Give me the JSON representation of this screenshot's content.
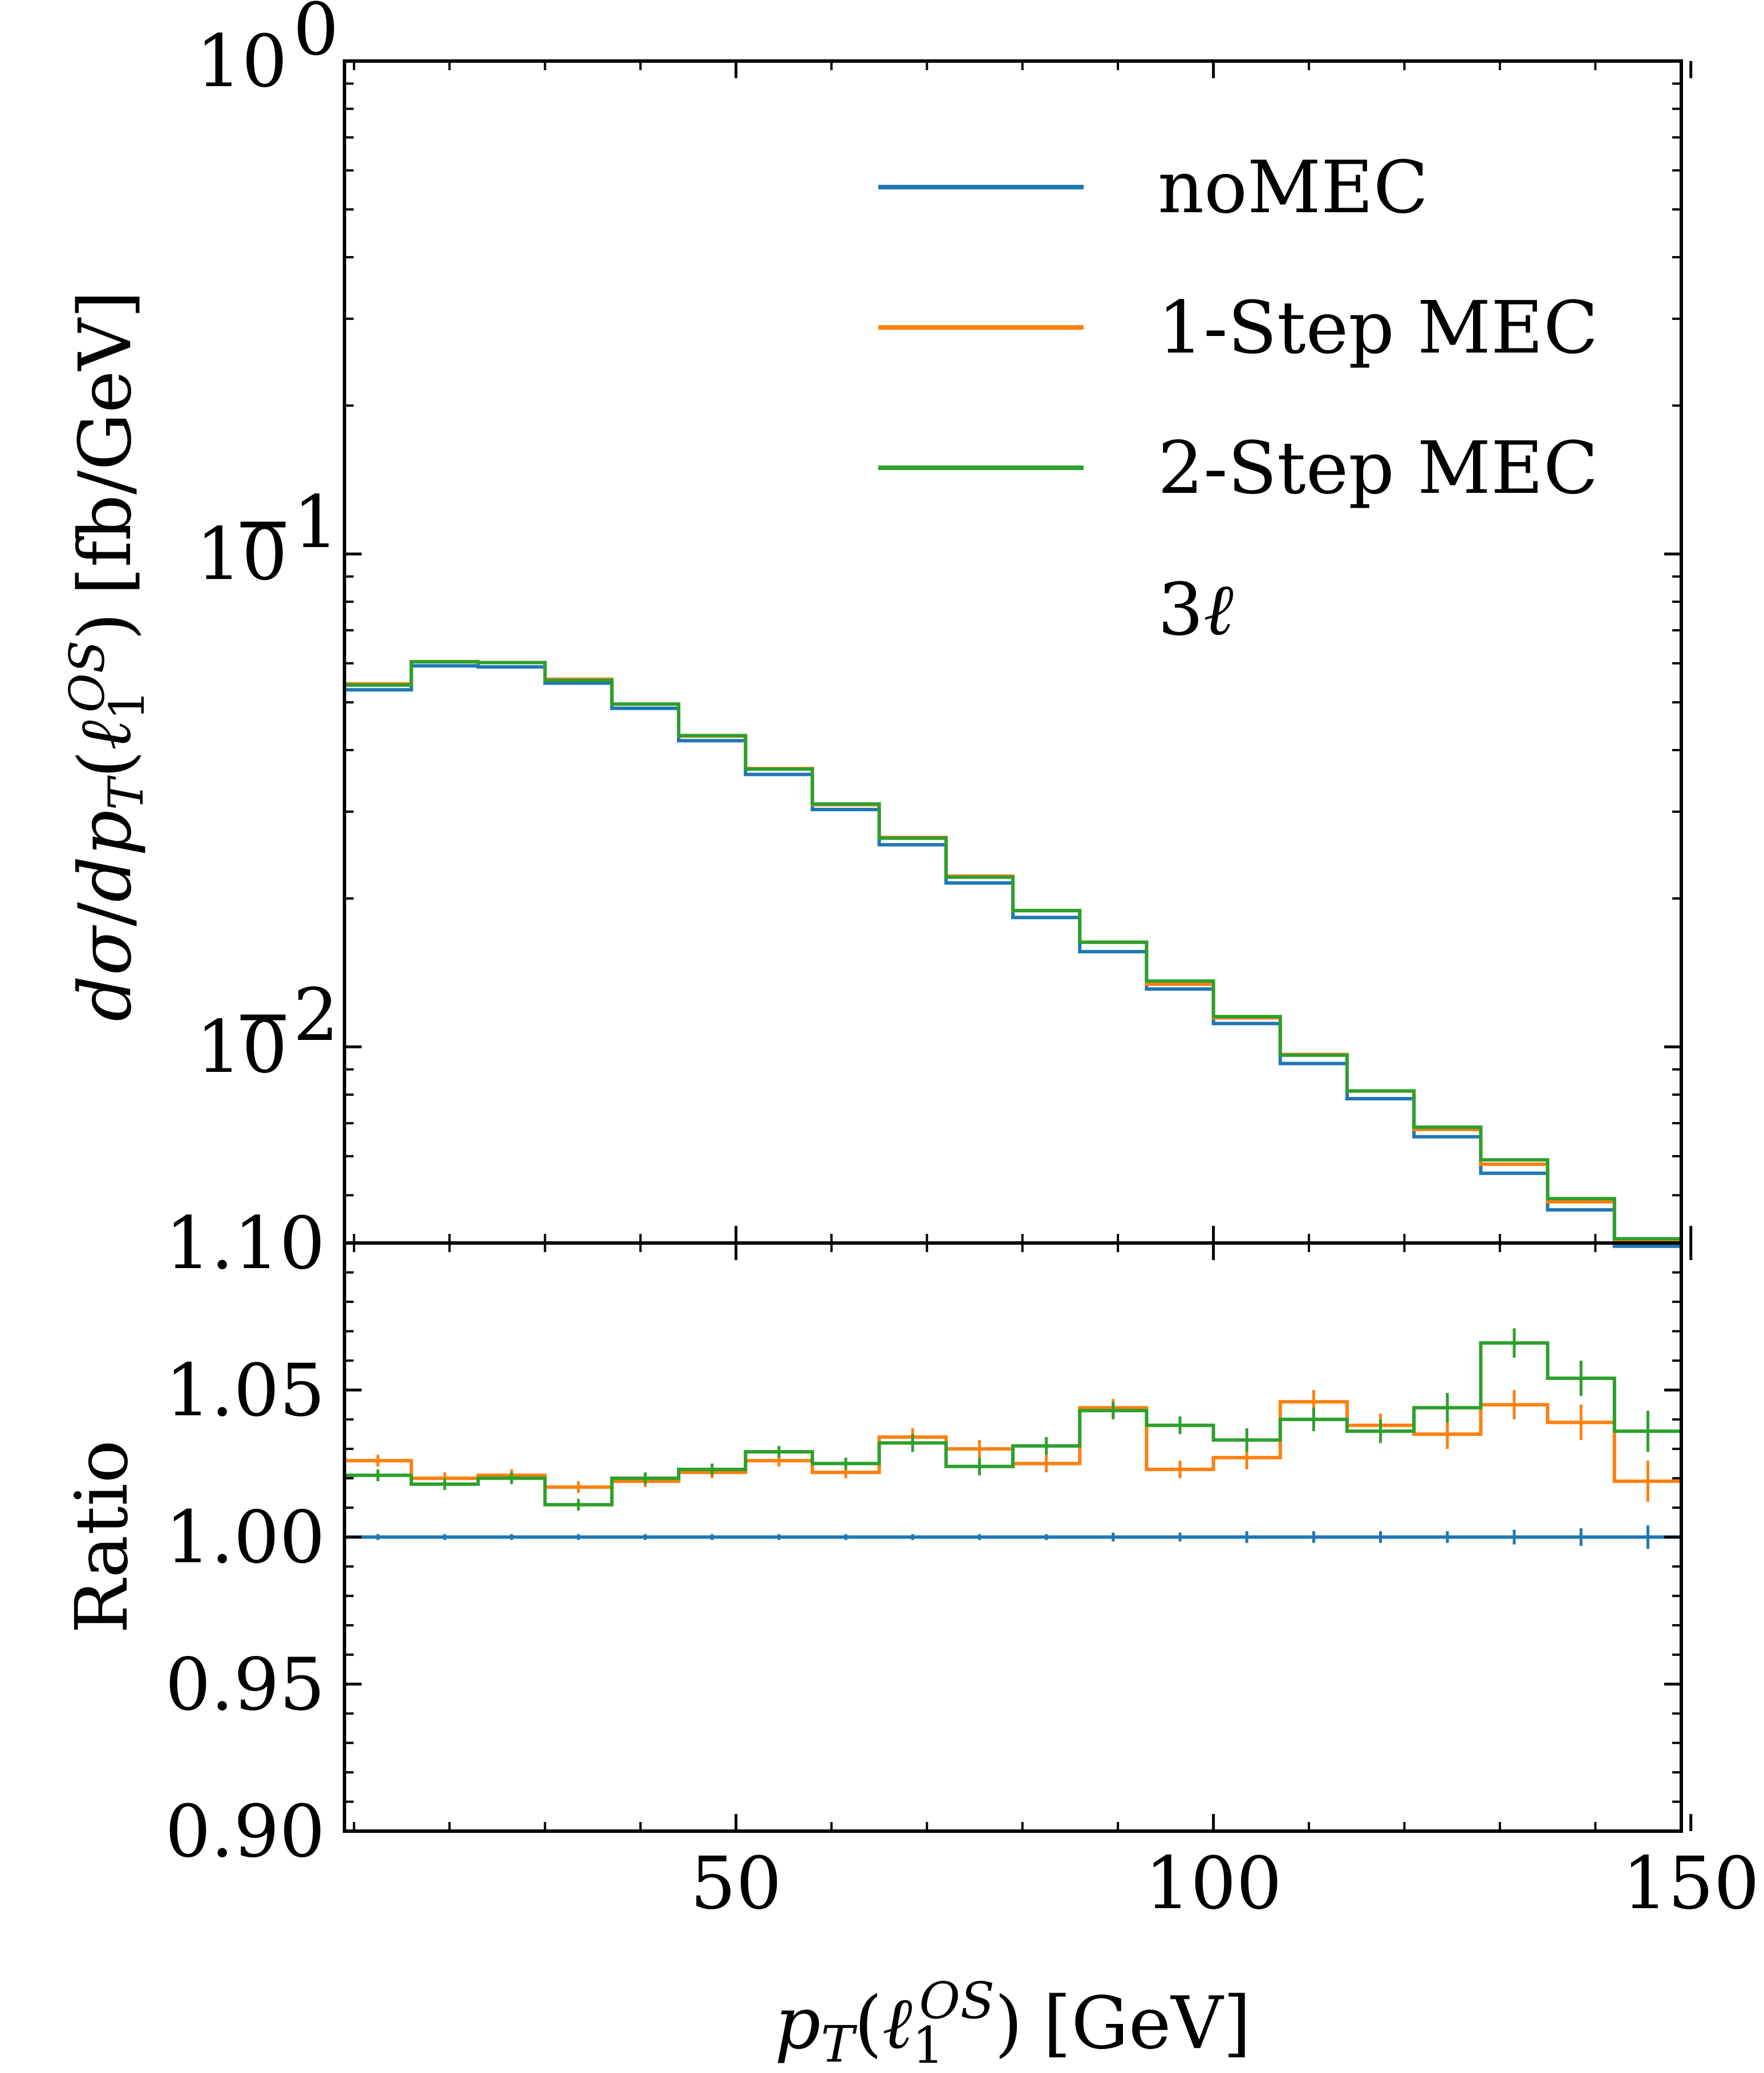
{
  "chart_data": {
    "type": "step-histogram-with-ratio",
    "x_bin_edges": [
      9,
      16,
      23,
      30,
      37,
      44,
      51,
      58,
      65,
      72,
      79,
      86,
      93,
      100,
      107,
      114,
      121,
      128,
      135,
      142,
      149
    ],
    "xlim": [
      9,
      149
    ],
    "xticks": [
      50,
      100,
      150
    ],
    "xtick_labels": [
      "50",
      "100",
      "150"
    ],
    "xlabel_main": "p",
    "xlabel_sub": "T",
    "xlabel_paren_open": "(",
    "xlabel_ell": "ℓ",
    "xlabel_ell_sub": "1",
    "xlabel_ell_sup": "OS",
    "xlabel_paren_close": ")",
    "xlabel_unit": "[GeV]",
    "top_panel": {
      "yscale": "log",
      "ylim": [
        0.004,
        1
      ],
      "ytick_labels": [
        {
          "value": 1,
          "base": "10",
          "exp": "0"
        },
        {
          "value": 0.1,
          "base": "10",
          "exp": "−1"
        },
        {
          "value": 0.01,
          "base": "10",
          "exp": "−2"
        }
      ],
      "ylabel": "dσ/dp_T(ℓ_1^OS) [fb/GeV]",
      "ylabel_d1": "d",
      "ylabel_sigma": "σ",
      "ylabel_slash": "/",
      "ylabel_d2": "dp",
      "ylabel_T": "T",
      "ylabel_open": "(",
      "ylabel_ell": "ℓ",
      "ylabel_sub1": "1",
      "ylabel_supOS": "OS",
      "ylabel_close": ")",
      "ylabel_unit": "[fb/GeV]",
      "series": [
        {
          "name": "noMEC",
          "color": "#1f77b4",
          "values": [
            0.053,
            0.0593,
            0.059,
            0.0547,
            0.0486,
            0.0418,
            0.0357,
            0.0303,
            0.0257,
            0.0215,
            0.0183,
            0.0156,
            0.0131,
            0.01115,
            0.00925,
            0.00785,
            0.00657,
            0.00554,
            0.00467,
            0.00394
          ]
        },
        {
          "name": "1-Step MEC",
          "color": "#ff7f0e",
          "values": [
            0.0545,
            0.0605,
            0.0602,
            0.0557,
            0.0496,
            0.0427,
            0.0367,
            0.031,
            0.0266,
            0.0222,
            0.0189,
            0.0163,
            0.0134,
            0.01145,
            0.00965,
            0.00813,
            0.0068,
            0.00578,
            0.00485,
            0.00402
          ]
        },
        {
          "name": "2-Step MEC",
          "color": "#2ca02c",
          "values": [
            0.0542,
            0.0604,
            0.0602,
            0.0554,
            0.0496,
            0.0428,
            0.0366,
            0.0311,
            0.0265,
            0.0221,
            0.0189,
            0.0163,
            0.0136,
            0.01152,
            0.00962,
            0.00814,
            0.00687,
            0.0059,
            0.00492,
            0.00408
          ]
        }
      ]
    },
    "bottom_panel": {
      "ylabel": "Ratio",
      "ylim": [
        0.9,
        1.1
      ],
      "yticks": [
        0.9,
        0.95,
        1.0,
        1.05,
        1.1
      ],
      "ytick_labels": [
        "0.90",
        "0.95",
        "1.00",
        "1.05",
        "1.10"
      ],
      "series": [
        {
          "name": "noMEC",
          "color": "#1f77b4",
          "values": [
            1.0,
            1.0,
            1.0,
            1.0,
            1.0,
            1.0,
            1.0,
            1.0,
            1.0,
            1.0,
            1.0,
            1.0,
            1.0,
            1.0,
            1.0,
            1.0,
            1.0,
            1.0,
            1.0,
            1.0
          ],
          "errors": [
            0.001,
            0.001,
            0.001,
            0.001,
            0.001,
            0.001,
            0.001,
            0.001,
            0.001,
            0.001,
            0.001,
            0.0015,
            0.0015,
            0.002,
            0.002,
            0.002,
            0.002,
            0.0025,
            0.003,
            0.004
          ]
        },
        {
          "name": "1-Step MEC",
          "color": "#ff7f0e",
          "values": [
            1.026,
            1.02,
            1.021,
            1.017,
            1.019,
            1.022,
            1.026,
            1.022,
            1.034,
            1.03,
            1.025,
            1.044,
            1.023,
            1.027,
            1.046,
            1.038,
            1.035,
            1.045,
            1.039,
            1.019
          ],
          "errors": [
            0.002,
            0.002,
            0.002,
            0.002,
            0.002,
            0.002,
            0.002,
            0.002,
            0.003,
            0.003,
            0.003,
            0.003,
            0.003,
            0.004,
            0.004,
            0.004,
            0.005,
            0.005,
            0.006,
            0.007
          ]
        },
        {
          "name": "2-Step MEC",
          "color": "#2ca02c",
          "values": [
            1.021,
            1.018,
            1.02,
            1.011,
            1.02,
            1.023,
            1.029,
            1.025,
            1.032,
            1.024,
            1.031,
            1.043,
            1.038,
            1.033,
            1.04,
            1.036,
            1.044,
            1.066,
            1.054,
            1.036
          ],
          "errors": [
            0.002,
            0.002,
            0.002,
            0.002,
            0.002,
            0.002,
            0.002,
            0.002,
            0.003,
            0.003,
            0.003,
            0.003,
            0.003,
            0.004,
            0.004,
            0.004,
            0.005,
            0.005,
            0.006,
            0.007
          ]
        }
      ]
    },
    "legend": {
      "location": "top-right",
      "entries": [
        {
          "label": "noMEC",
          "color": "#1f77b4"
        },
        {
          "label": "1-Step MEC",
          "color": "#ff7f0e"
        },
        {
          "label": "2-Step MEC",
          "color": "#2ca02c"
        }
      ],
      "note_num": "3",
      "note_sym": "ℓ"
    }
  }
}
